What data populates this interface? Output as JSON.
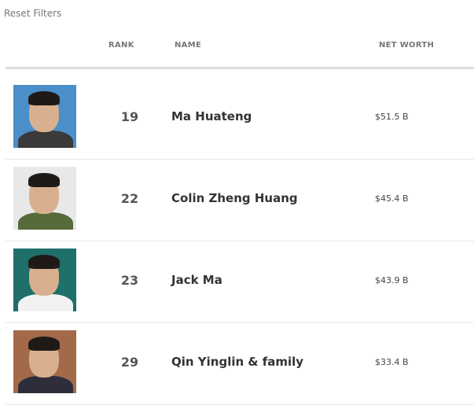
{
  "reset_filters": "Reset Filters",
  "columns": {
    "rank": "RANK",
    "name": "NAME",
    "net_worth": "NET WORTH"
  },
  "rows": [
    {
      "rank": "19",
      "name": "Ma Huateng",
      "net_worth": "$51.5 B",
      "bg": "#4a8fc9",
      "suit": "#3a3a3a"
    },
    {
      "rank": "22",
      "name": "Colin Zheng Huang",
      "net_worth": "$45.4 B",
      "bg": "#e8e8e8",
      "suit": "#556b3a"
    },
    {
      "rank": "23",
      "name": "Jack Ma",
      "net_worth": "$43.9 B",
      "bg": "#1f6f6a",
      "suit": "#f2f2f2"
    },
    {
      "rank": "29",
      "name": "Qin Yinglin & family",
      "net_worth": "$33.4 B",
      "bg": "#a36a4a",
      "suit": "#2e2e3a"
    }
  ]
}
